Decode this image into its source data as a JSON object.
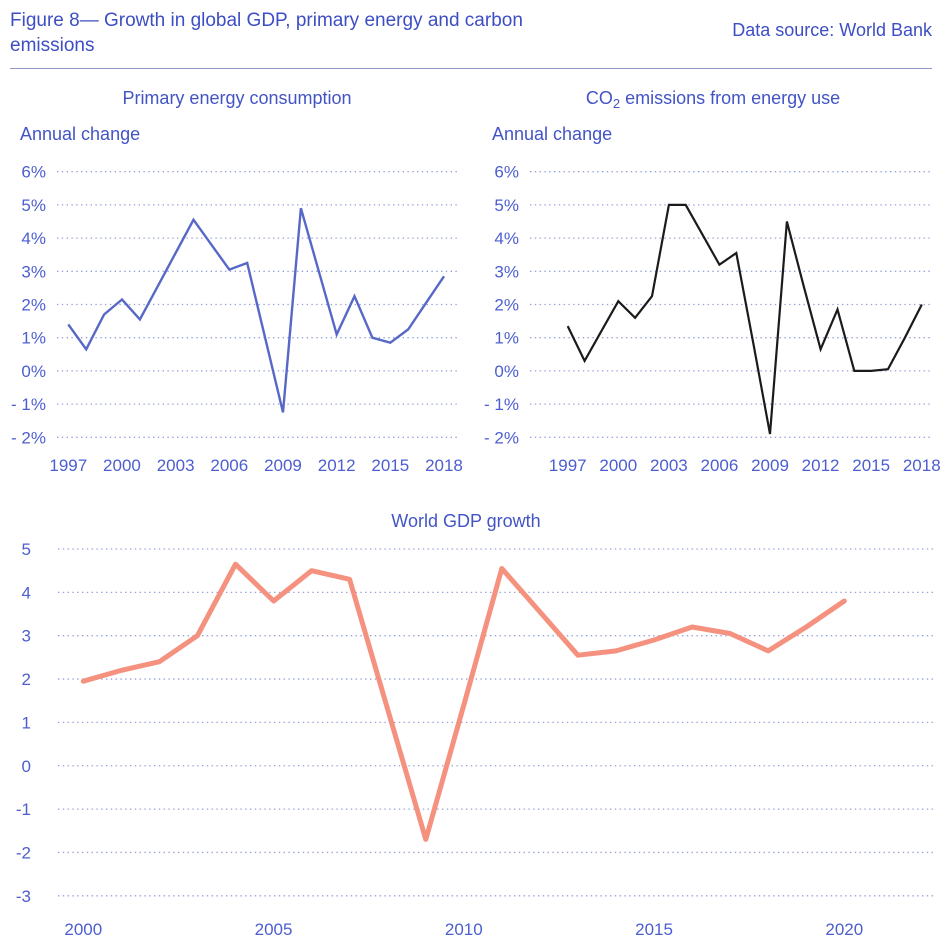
{
  "header": {
    "title_lines": [
      "Figure 8— Growth in global GDP, primary energy and carbon",
      "emissions"
    ],
    "data_source": "Data source: World Bank"
  },
  "colors": {
    "heading_text": "#3d4ec4",
    "chart_text": "#4254c6",
    "tick_text": "#4c5ed0",
    "gridline": "#97a1da",
    "header_rule": "#8e98c2",
    "energy_line": "#5868c6",
    "co2_line": "#1b1b1b",
    "gdp_line": "#f5917f"
  },
  "chart_data": [
    {
      "type": "line",
      "title": "Primary energy consumption",
      "title_parts": [
        {
          "t": "Primary energy consumption"
        }
      ],
      "ylabel": "Annual change",
      "x": [
        1997,
        1998,
        1999,
        2000,
        2001,
        2002,
        2003,
        2004,
        2005,
        2006,
        2007,
        2008,
        2009,
        2010,
        2011,
        2012,
        2013,
        2014,
        2015,
        2016,
        2017,
        2018
      ],
      "values": [
        1.4,
        0.65,
        1.7,
        2.15,
        1.55,
        2.55,
        3.55,
        4.55,
        3.8,
        3.05,
        3.25,
        1.0,
        -1.25,
        4.9,
        3.0,
        1.1,
        2.25,
        1.0,
        0.85,
        1.25,
        2.05,
        2.85
      ],
      "yticks": [
        {
          "v": 6,
          "label": "6%"
        },
        {
          "v": 5,
          "label": "5%"
        },
        {
          "v": 4,
          "label": "4%"
        },
        {
          "v": 3,
          "label": "3%"
        },
        {
          "v": 2,
          "label": "2%"
        },
        {
          "v": 1,
          "label": "1%"
        },
        {
          "v": 0,
          "label": "0%"
        },
        {
          "v": -1,
          "label": "- 1%"
        },
        {
          "v": -2,
          "label": "- 2%"
        }
      ],
      "xticks": [
        1997,
        2000,
        2003,
        2006,
        2009,
        2012,
        2015,
        2018
      ],
      "ylim": [
        -2,
        6
      ],
      "grid": true,
      "legend": "none",
      "line_color": "#5868c6"
    },
    {
      "type": "line",
      "title": "CO2 emissions from energy use",
      "title_parts": [
        {
          "t": "CO"
        },
        {
          "t": "2",
          "sub": true
        },
        {
          "t": " emissions from energy use"
        }
      ],
      "ylabel": "Annual change",
      "x": [
        1997,
        1998,
        1999,
        2000,
        2001,
        2002,
        2003,
        2004,
        2005,
        2006,
        2007,
        2008,
        2009,
        2010,
        2011,
        2012,
        2013,
        2014,
        2015,
        2016,
        2017,
        2018
      ],
      "values": [
        1.35,
        0.3,
        1.2,
        2.1,
        1.6,
        2.25,
        5.0,
        5.0,
        4.1,
        3.2,
        3.55,
        0.85,
        -1.9,
        4.5,
        2.55,
        0.65,
        1.85,
        0.0,
        0.0,
        0.05,
        1.0,
        2.0
      ],
      "yticks": [
        {
          "v": 6,
          "label": "6%"
        },
        {
          "v": 5,
          "label": "5%"
        },
        {
          "v": 4,
          "label": "4%"
        },
        {
          "v": 3,
          "label": "3%"
        },
        {
          "v": 2,
          "label": "2%"
        },
        {
          "v": 1,
          "label": "1%"
        },
        {
          "v": 0,
          "label": "0%"
        },
        {
          "v": -1,
          "label": "- 1%"
        },
        {
          "v": -2,
          "label": "- 2%"
        }
      ],
      "xticks": [
        1997,
        2000,
        2003,
        2006,
        2009,
        2012,
        2015,
        2018
      ],
      "ylim": [
        -2,
        6
      ],
      "grid": true,
      "legend": "none",
      "line_color": "#1b1b1b"
    },
    {
      "type": "line",
      "title": "World GDP growth",
      "title_parts": [
        {
          "t": "World GDP growth"
        }
      ],
      "ylabel": "",
      "x": [
        2000,
        2001,
        2002,
        2003,
        2004,
        2005,
        2006,
        2007,
        2008,
        2009,
        2010,
        2011,
        2012,
        2013,
        2014,
        2015,
        2016,
        2017,
        2018,
        2019,
        2020
      ],
      "values": [
        1.95,
        2.2,
        2.4,
        3.0,
        4.65,
        3.8,
        4.5,
        4.3,
        1.3,
        -1.7,
        1.4,
        4.55,
        3.55,
        2.55,
        2.65,
        2.9,
        3.2,
        3.05,
        2.65,
        3.2,
        3.8
      ],
      "yticks": [
        {
          "v": 5,
          "label": "5"
        },
        {
          "v": 4,
          "label": "4"
        },
        {
          "v": 3,
          "label": "3"
        },
        {
          "v": 2,
          "label": "2"
        },
        {
          "v": 1,
          "label": "1"
        },
        {
          "v": 0,
          "label": "0"
        },
        {
          "v": -1,
          "label": "-1"
        },
        {
          "v": -2,
          "label": "-2"
        },
        {
          "v": -3,
          "label": "-3"
        }
      ],
      "xticks": [
        2000,
        2005,
        2010,
        2015,
        2020
      ],
      "ylim": [
        -3,
        5
      ],
      "grid": true,
      "legend": "none",
      "line_color": "#f5917f"
    }
  ]
}
